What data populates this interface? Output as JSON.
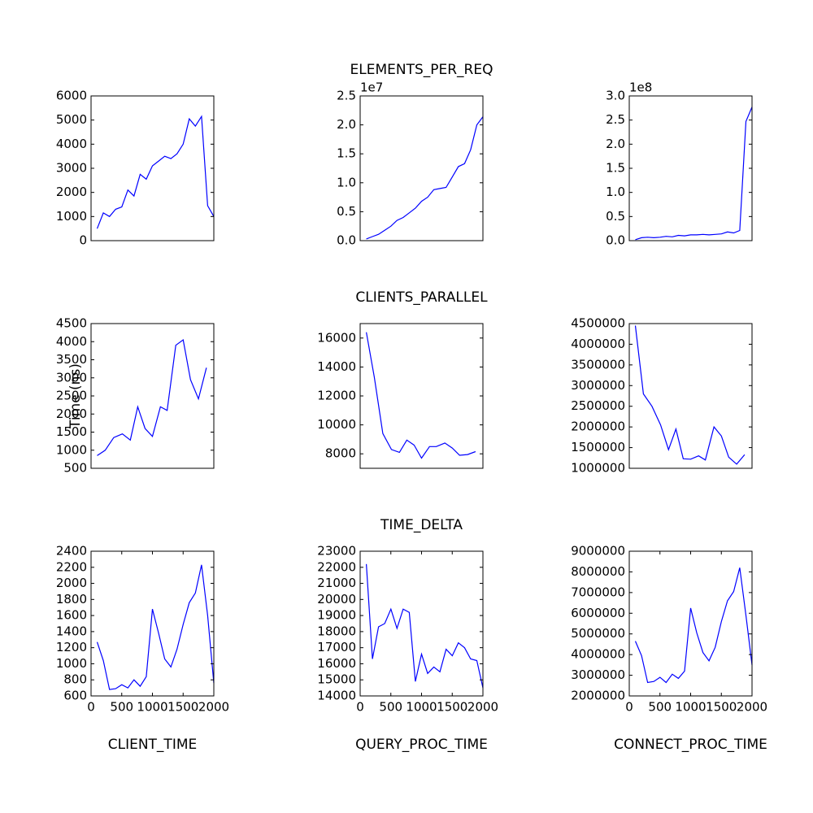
{
  "chart_data": [
    {
      "type": "line",
      "color": "#0000ff",
      "xlim": [
        0,
        2000
      ],
      "ylim": [
        0,
        6000
      ],
      "yticks": [
        0,
        1000,
        2000,
        3000,
        4000,
        5000,
        6000
      ],
      "x": [
        100,
        200,
        300,
        400,
        500,
        600,
        700,
        800,
        900,
        1000,
        1100,
        1200,
        1300,
        1400,
        1500,
        1600,
        1700,
        1800,
        1900,
        2000
      ],
      "values": [
        500,
        1150,
        1000,
        1300,
        1400,
        2100,
        1850,
        2750,
        2550,
        3100,
        3300,
        3500,
        3400,
        3600,
        4000,
        5050,
        4750,
        5150,
        1450,
        1000
      ]
    },
    {
      "type": "line",
      "color": "#0000ff",
      "title": "ELEMENTS_PER_REQ",
      "offset_label": "1e7",
      "xlim": [
        0,
        2000
      ],
      "ylim": [
        0,
        25000000
      ],
      "yticks": [
        {
          "value": 0,
          "label": "0.0"
        },
        {
          "value": 5000000,
          "label": "0.5"
        },
        {
          "value": 10000000,
          "label": "1.0"
        },
        {
          "value": 15000000,
          "label": "1.5"
        },
        {
          "value": 20000000,
          "label": "2.0"
        },
        {
          "value": 25000000,
          "label": "2.5"
        }
      ],
      "x": [
        100,
        200,
        300,
        400,
        500,
        600,
        700,
        800,
        900,
        1000,
        1100,
        1200,
        1300,
        1400,
        1500,
        1600,
        1700,
        1800,
        1900,
        2000
      ],
      "values": [
        300000,
        700000,
        1100000,
        1800000,
        2500000,
        3500000,
        4000000,
        4800000,
        5600000,
        6800000,
        7500000,
        8800000,
        9000000,
        9200000,
        11000000,
        12800000,
        13300000,
        15700000,
        20000000,
        21400000
      ]
    },
    {
      "type": "line",
      "color": "#0000ff",
      "offset_label": "1e8",
      "xlim": [
        0,
        2000
      ],
      "ylim": [
        0,
        300000000
      ],
      "yticks": [
        {
          "value": 0,
          "label": "0.0"
        },
        {
          "value": 50000000,
          "label": "0.5"
        },
        {
          "value": 100000000,
          "label": "1.0"
        },
        {
          "value": 150000000,
          "label": "1.5"
        },
        {
          "value": 200000000,
          "label": "2.0"
        },
        {
          "value": 250000000,
          "label": "2.5"
        },
        {
          "value": 300000000,
          "label": "3.0"
        }
      ],
      "x": [
        100,
        200,
        300,
        400,
        500,
        600,
        700,
        800,
        900,
        1000,
        1100,
        1200,
        1300,
        1400,
        1500,
        1600,
        1700,
        1800,
        1900,
        2000
      ],
      "values": [
        2000000,
        6000000,
        7000000,
        6000000,
        7000000,
        9000000,
        8000000,
        11000000,
        10000000,
        12000000,
        12000000,
        13000000,
        12000000,
        13000000,
        14000000,
        18000000,
        16000000,
        21000000,
        247000000,
        277000000
      ]
    },
    {
      "type": "line",
      "color": "#0000ff",
      "ylabel": "Time (ns)",
      "xlim": [
        0,
        2000
      ],
      "ylim": [
        500,
        4500
      ],
      "yticks": [
        500,
        1000,
        1500,
        2000,
        2500,
        3000,
        3500,
        4000,
        4500
      ],
      "x": [
        100,
        230,
        370,
        510,
        640,
        760,
        880,
        1000,
        1130,
        1240,
        1380,
        1500,
        1620,
        1750,
        1880
      ],
      "values": [
        850,
        1000,
        1350,
        1450,
        1280,
        2200,
        1600,
        1380,
        2200,
        2100,
        3900,
        4050,
        2950,
        2420,
        3280
      ]
    },
    {
      "type": "line",
      "color": "#0000ff",
      "title": "CLIENTS_PARALLEL",
      "xlim": [
        0,
        2000
      ],
      "ylim": [
        7000,
        17000
      ],
      "yticks": [
        8000,
        10000,
        12000,
        14000,
        16000
      ],
      "x": [
        100,
        230,
        370,
        510,
        640,
        760,
        880,
        1000,
        1130,
        1240,
        1380,
        1500,
        1620,
        1750,
        1880
      ],
      "values": [
        16400,
        13300,
        9400,
        8300,
        8100,
        8950,
        8600,
        7700,
        8500,
        8500,
        8750,
        8400,
        7900,
        7950,
        8150
      ]
    },
    {
      "type": "line",
      "color": "#0000ff",
      "xlim": [
        0,
        2000
      ],
      "ylim": [
        1000000,
        4500000
      ],
      "yticks": [
        1000000,
        1500000,
        2000000,
        2500000,
        3000000,
        3500000,
        4000000,
        4500000
      ],
      "x": [
        100,
        230,
        370,
        510,
        640,
        760,
        880,
        1000,
        1130,
        1240,
        1380,
        1500,
        1620,
        1750,
        1880
      ],
      "values": [
        4450000,
        2800000,
        2500000,
        2050000,
        1450000,
        1950000,
        1230000,
        1220000,
        1300000,
        1200000,
        2000000,
        1780000,
        1270000,
        1100000,
        1330000
      ]
    },
    {
      "type": "line",
      "color": "#0000ff",
      "xlabel": "CLIENT_TIME",
      "xlim": [
        0,
        2000
      ],
      "xticks": [
        0,
        500,
        1000,
        1500,
        2000
      ],
      "ylim": [
        600,
        2400
      ],
      "yticks": [
        600,
        800,
        1000,
        1200,
        1400,
        1600,
        1800,
        2000,
        2200,
        2400
      ],
      "x": [
        100,
        200,
        300,
        400,
        500,
        600,
        700,
        800,
        900,
        1000,
        1100,
        1200,
        1300,
        1400,
        1500,
        1600,
        1700,
        1800,
        1900,
        2000
      ],
      "values": [
        1270,
        1040,
        680,
        690,
        740,
        700,
        800,
        720,
        840,
        1680,
        1380,
        1060,
        960,
        1180,
        1490,
        1760,
        1880,
        2230,
        1600,
        760
      ]
    },
    {
      "type": "line",
      "color": "#0000ff",
      "title": "TIME_DELTA",
      "xlabel": "QUERY_PROC_TIME",
      "xlim": [
        0,
        2000
      ],
      "xticks": [
        0,
        500,
        1000,
        1500,
        2000
      ],
      "ylim": [
        14000,
        23000
      ],
      "yticks": [
        14000,
        15000,
        16000,
        17000,
        18000,
        19000,
        20000,
        21000,
        22000,
        23000
      ],
      "x": [
        100,
        200,
        300,
        400,
        500,
        600,
        700,
        800,
        900,
        1000,
        1100,
        1200,
        1300,
        1400,
        1500,
        1600,
        1700,
        1800,
        1900,
        2000
      ],
      "values": [
        22200,
        16300,
        18300,
        18500,
        19400,
        18200,
        19400,
        19200,
        14900,
        16600,
        15400,
        15800,
        15500,
        16900,
        16500,
        17300,
        17000,
        16300,
        16200,
        14500
      ]
    },
    {
      "type": "line",
      "color": "#0000ff",
      "xlabel": "CONNECT_PROC_TIME",
      "xlim": [
        0,
        2000
      ],
      "xticks": [
        0,
        500,
        1000,
        1500,
        2000
      ],
      "ylim": [
        2000000,
        9000000
      ],
      "yticks": [
        2000000,
        3000000,
        4000000,
        5000000,
        6000000,
        7000000,
        8000000,
        9000000
      ],
      "x": [
        100,
        200,
        300,
        400,
        500,
        600,
        700,
        800,
        900,
        1000,
        1100,
        1200,
        1300,
        1400,
        1500,
        1600,
        1700,
        1800,
        1900,
        2000
      ],
      "values": [
        4650000,
        3950000,
        2650000,
        2700000,
        2900000,
        2650000,
        3050000,
        2850000,
        3200000,
        6250000,
        5050000,
        4100000,
        3700000,
        4350000,
        5600000,
        6600000,
        7050000,
        8200000,
        5900000,
        3500000
      ]
    }
  ]
}
